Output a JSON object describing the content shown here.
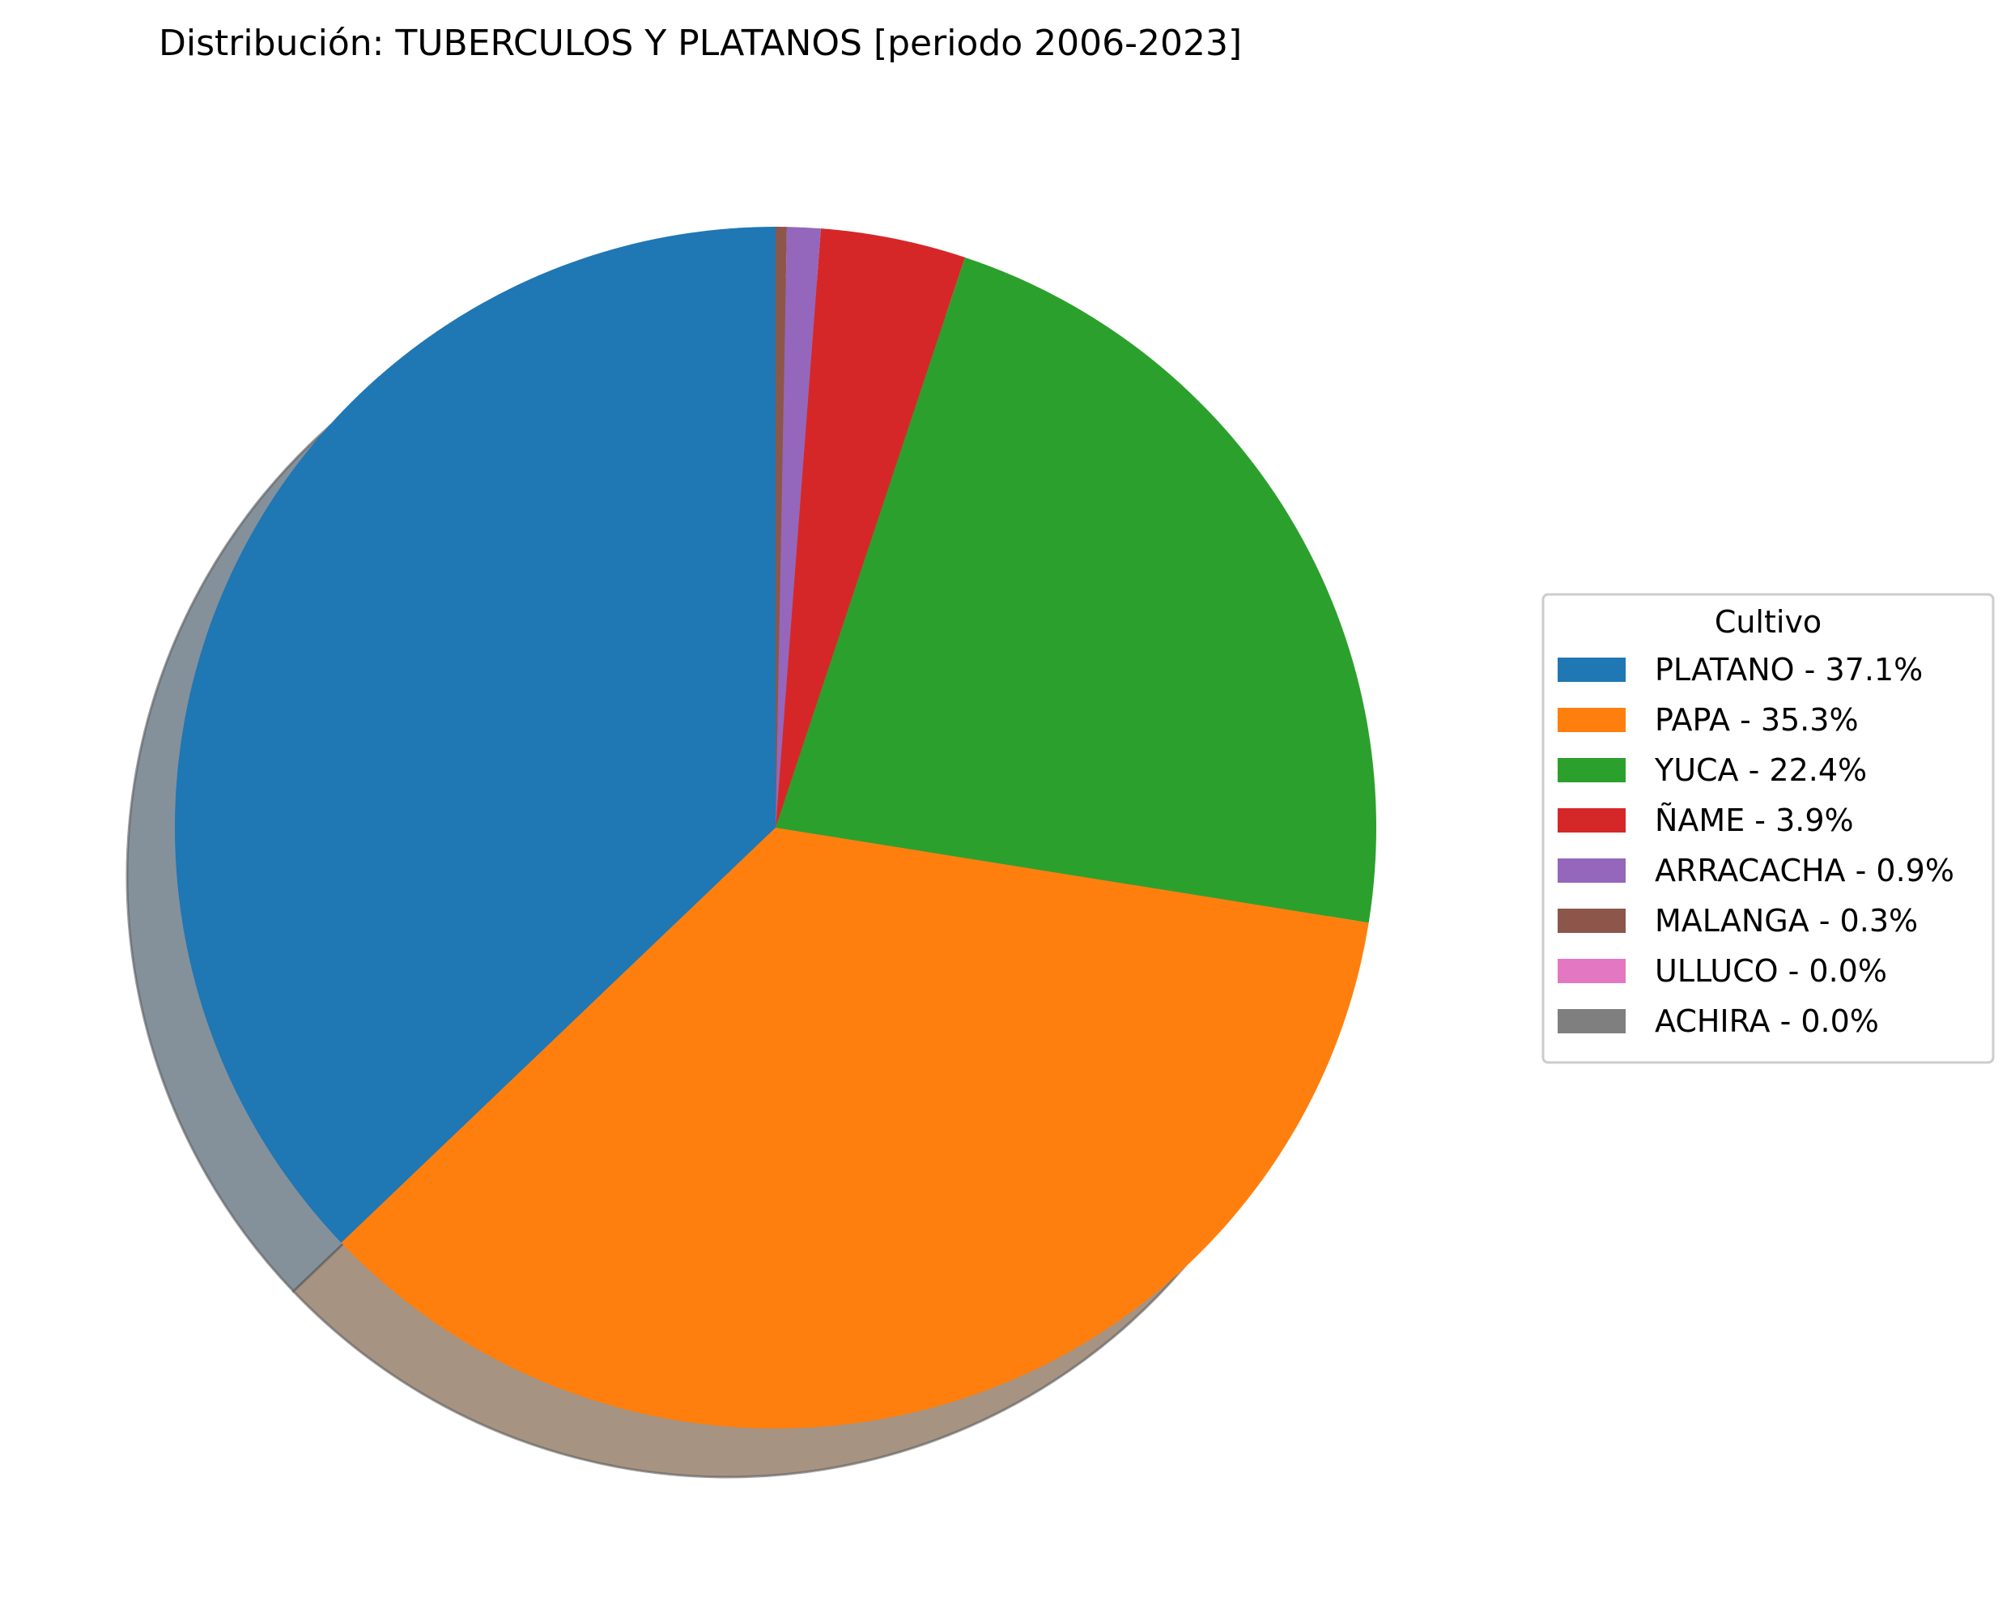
{
  "chart_data": {
    "type": "pie",
    "title": "Distribución: TUBERCULOS Y PLATANOS [periodo 2006-2023]",
    "start_angle_deg": 90,
    "direction": "counterclockwise",
    "shadow": true,
    "legend": {
      "title": "Cultivo",
      "position": "right"
    },
    "slices": [
      {
        "label": "PLATANO",
        "value": 37.1,
        "legend_text": "PLATANO - 37.1%",
        "color": "#1f77b4"
      },
      {
        "label": "PAPA",
        "value": 35.3,
        "legend_text": "PAPA - 35.3%",
        "color": "#ff7f0e"
      },
      {
        "label": "YUCA",
        "value": 22.4,
        "legend_text": "YUCA - 22.4%",
        "color": "#2ca02c"
      },
      {
        "label": "ÑAME",
        "value": 3.9,
        "legend_text": "ÑAME - 3.9%",
        "color": "#d62728"
      },
      {
        "label": "ARRACACHA",
        "value": 0.9,
        "legend_text": "ARRACACHA - 0.9%",
        "color": "#9467bd"
      },
      {
        "label": "MALANGA",
        "value": 0.3,
        "legend_text": "MALANGA - 0.3%",
        "color": "#8c564b"
      },
      {
        "label": "ULLUCO",
        "value": 0.0,
        "legend_text": "ULLUCO - 0.0%",
        "color": "#e377c2"
      },
      {
        "label": "ACHIRA",
        "value": 0.0,
        "legend_text": "ACHIRA - 0.0%",
        "color": "#7f7f7f"
      }
    ]
  }
}
